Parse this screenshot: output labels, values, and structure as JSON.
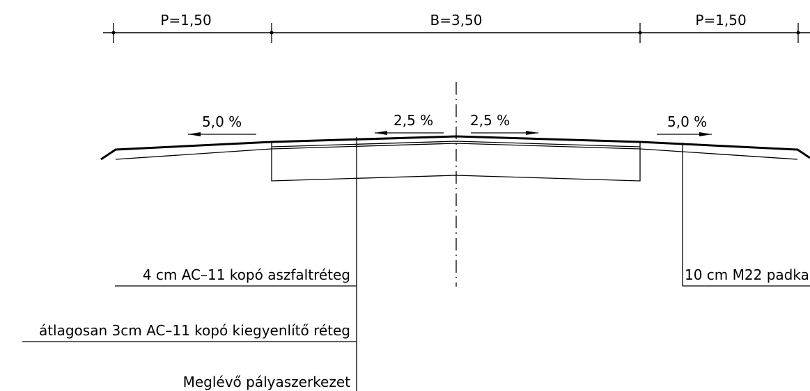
{
  "dimensions": {
    "left_shoulder": "P=1,50",
    "carriageway": "B=3,50",
    "right_shoulder": "P=1,50"
  },
  "slopes": {
    "left_shoulder": "5,0 %",
    "left_lane": "2,5 %",
    "right_lane": "2,5 %",
    "right_shoulder": "5,0 %"
  },
  "callouts": {
    "wearing_course": "4 cm AC–11 kopó aszfaltréteg",
    "leveling_course": "átlagosan 3cm AC–11 kopó kiegyenlítő réteg",
    "existing_structure": "Meglévő pályaszerkezet",
    "shoulder_material": "10 cm M22 padka"
  }
}
